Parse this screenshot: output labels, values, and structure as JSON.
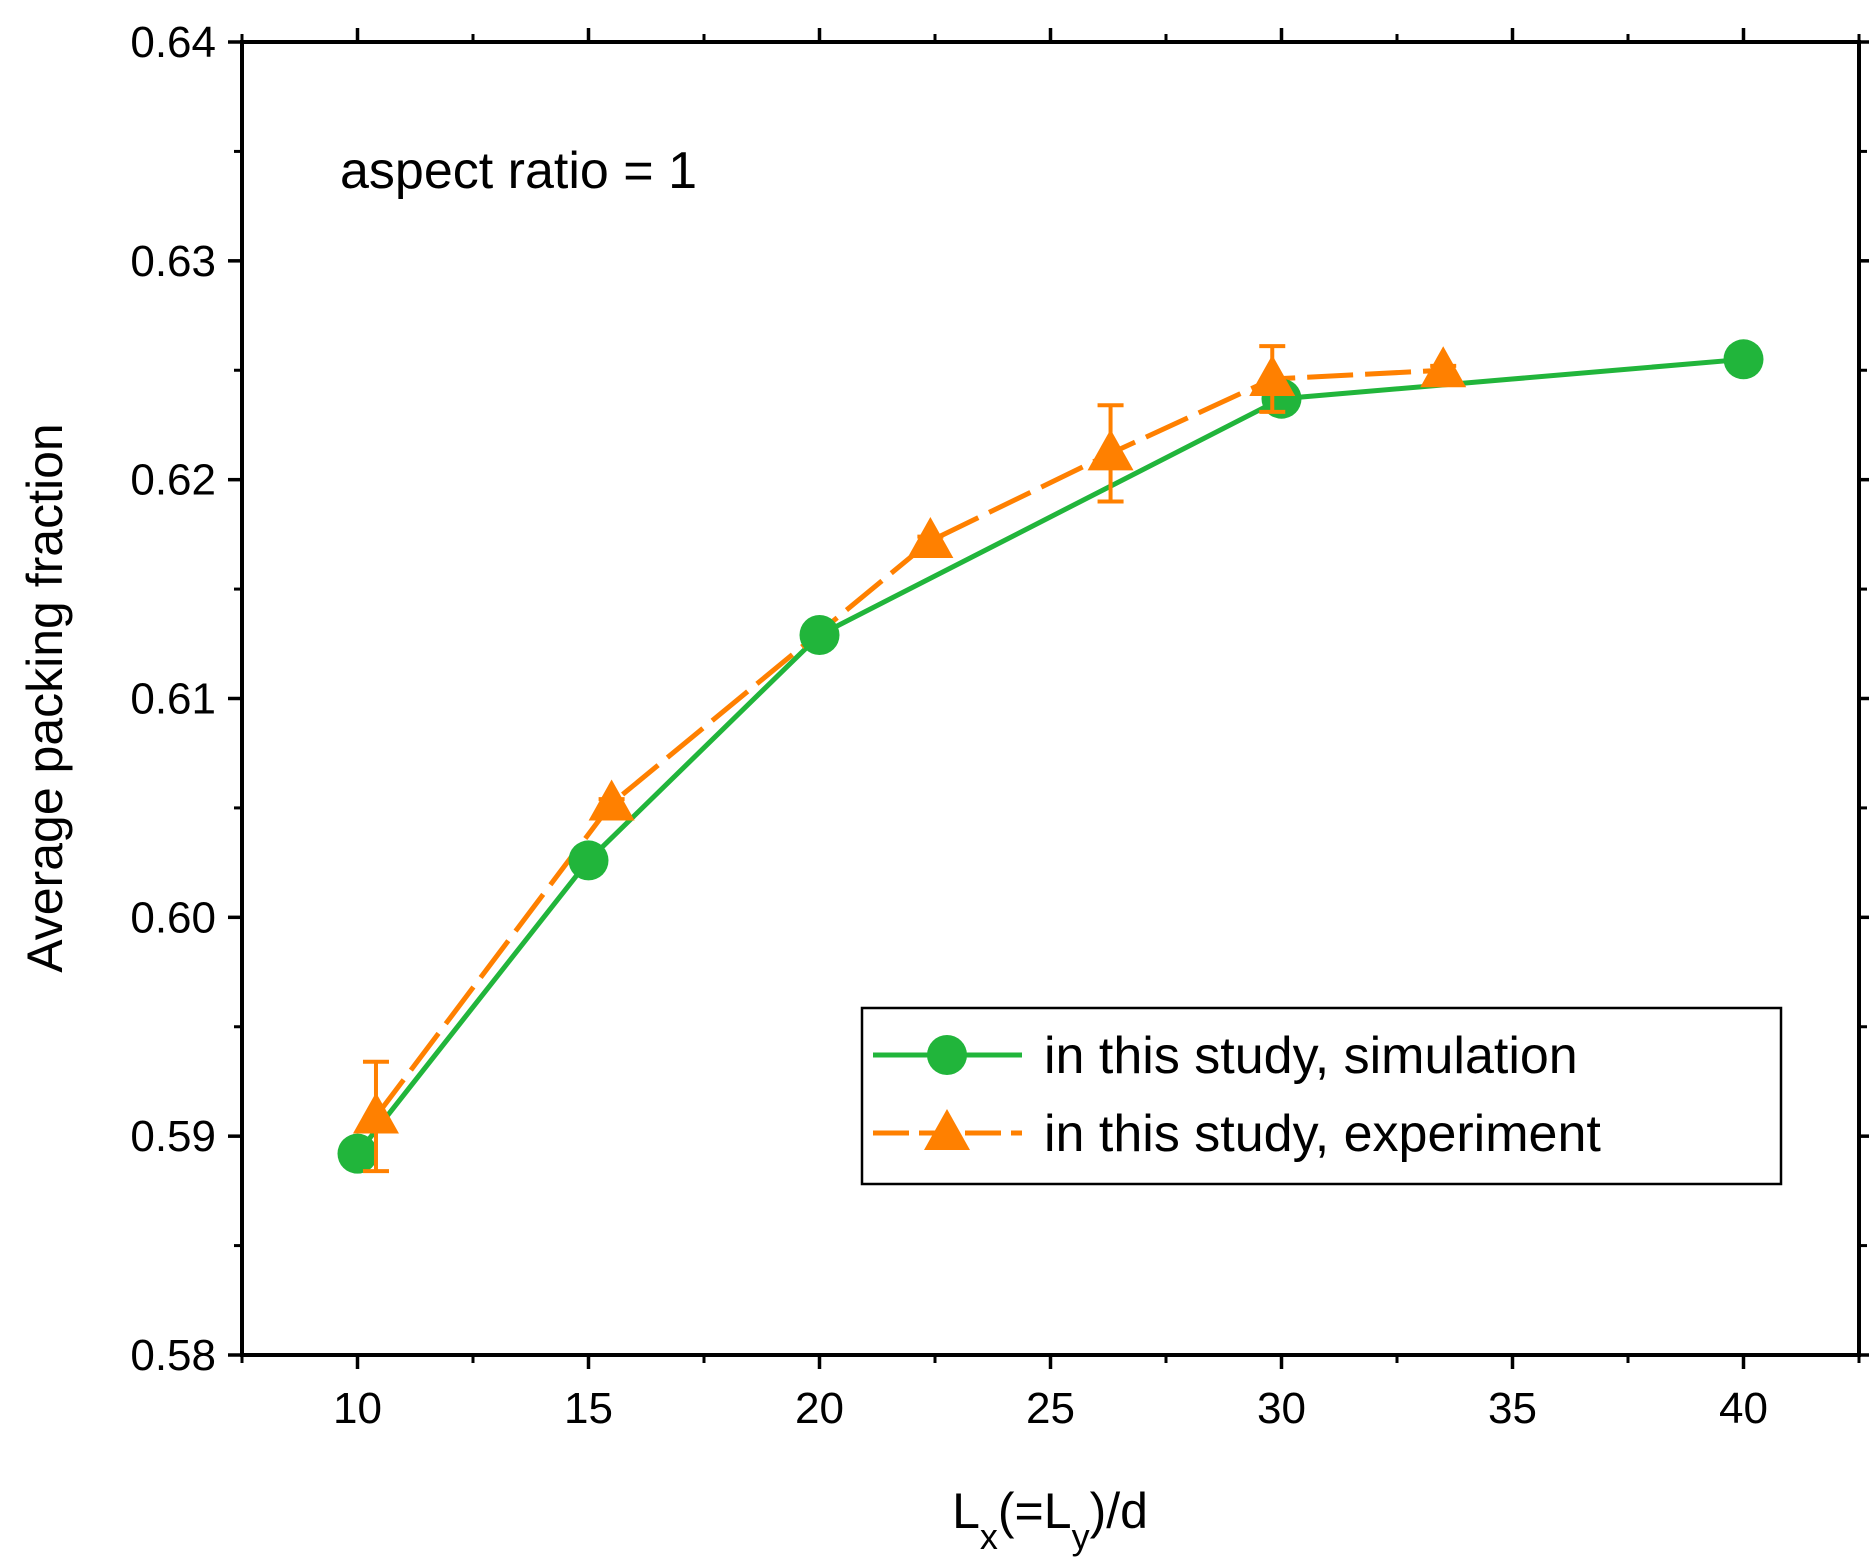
{
  "chart_data": {
    "type": "line",
    "title": "",
    "annotation": "aspect ratio = 1",
    "xlabel": {
      "main": "L",
      "sub1": "x",
      "mid": "(=L",
      "sub2": "y",
      "end": ")/d"
    },
    "ylabel": "Average packing fraction",
    "xlim": [
      7.5,
      42.5
    ],
    "ylim": [
      0.58,
      0.64
    ],
    "x_ticks": [
      10,
      15,
      20,
      25,
      30,
      35,
      40
    ],
    "x_tick_labels": [
      "10",
      "15",
      "20",
      "25",
      "30",
      "35",
      "40"
    ],
    "y_ticks": [
      0.58,
      0.59,
      0.6,
      0.61,
      0.62,
      0.63,
      0.64
    ],
    "y_tick_labels": [
      "0.58",
      "0.59",
      "0.60",
      "0.61",
      "0.62",
      "0.63",
      "0.64"
    ],
    "legend_position": "lower-right",
    "series": [
      {
        "name": "in this study, simulation",
        "color": "#21b53b",
        "marker": "circle",
        "line": "solid",
        "x": [
          10,
          15,
          20,
          30,
          40
        ],
        "y": [
          0.5892,
          0.6026,
          0.6129,
          0.6237,
          0.6255
        ]
      },
      {
        "name": "in this study, experiment",
        "color": "#ff8000",
        "marker": "triangle",
        "line": "dashed",
        "x": [
          10.4,
          15.5,
          22.4,
          26.3,
          29.8,
          33.5
        ],
        "y": [
          0.5909,
          0.6052,
          0.6172,
          0.6212,
          0.6246,
          0.625
        ],
        "error": [
          0.0025,
          0.0002,
          0.0002,
          0.0022,
          0.0015,
          0.0002
        ]
      }
    ]
  }
}
